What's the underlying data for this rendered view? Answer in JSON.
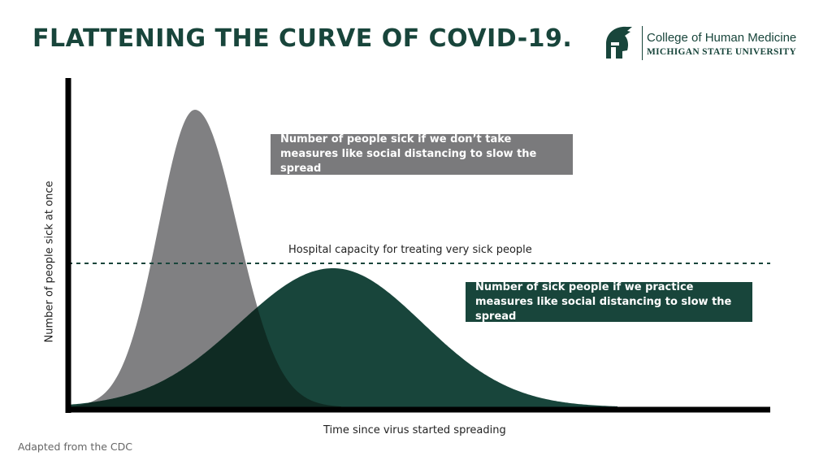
{
  "title": "FLATTENING THE CURVE OF COVID-19.",
  "logo": {
    "icon": "spartan-helmet-icon",
    "line1": "College of Human Medicine",
    "line2": "MICHIGAN STATE UNIVERSITY"
  },
  "diagram": {
    "y_axis_label": "Number of people sick at once",
    "x_axis_label": "Time since virus started spreading",
    "capacity_label": "Hospital capacity for treating very sick people",
    "no_measures_label": "Number of people sick if we don’t take measures like social distancing to slow the spread",
    "measures_label": "Number of sick people if we practice measures like social distancing to slow the spread"
  },
  "colors": {
    "brand_green": "#18453b",
    "curve_gray": "#808082",
    "overlap": "#0f2b23",
    "box_gray": "#7a7a7c"
  },
  "source": "Adapted from the CDC"
}
